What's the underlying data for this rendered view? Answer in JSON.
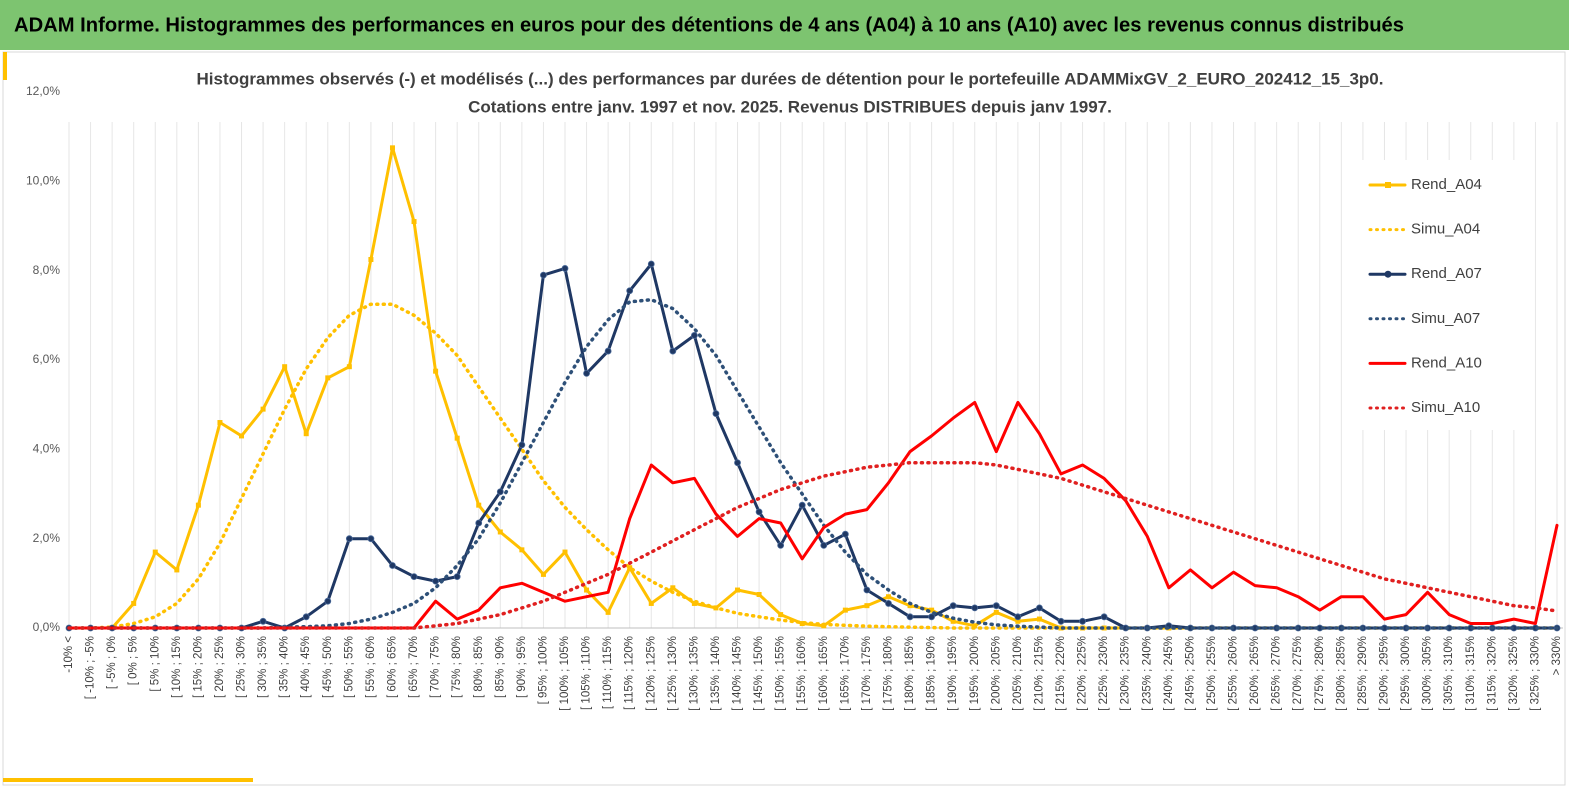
{
  "header": {
    "title": "ADAM Informe. Histogrammes des performances en euros pour des détentions de 4 ans (A04) à 10 ans (A10) avec les revenus connus distribués"
  },
  "chart_data": {
    "type": "line",
    "title": "Histogrammes observés (-) et modélisés (...) des performances par durées de détention pour le portefeuille ADAMMixGV_2_EURO_202412_15_3p0.",
    "subtitle": "Cotations entre janv. 1997 et nov. 2025. Revenus DISTRIBUES depuis janv 1997.",
    "categories": [
      "-10% <",
      "[ -10% ; -5%",
      "[ -5% ; 0%",
      "[ 0% ; 5%",
      "[ 5% ; 10%",
      "[ 10% ; 15%",
      "[ 15% ; 20%",
      "[ 20% ; 25%",
      "[ 25% ; 30%",
      "[ 30% ; 35%",
      "[ 35% ; 40%",
      "[ 40% ; 45%",
      "[ 45% ; 50%",
      "[ 50% ; 55%",
      "[ 55% ; 60%",
      "[ 60% ; 65%",
      "[ 65% ; 70%",
      "[ 70% ; 75%",
      "[ 75% ; 80%",
      "[ 80% ; 85%",
      "[ 85% ; 90%",
      "[ 90% ; 95%",
      "[ 95% ; 100%",
      "[ 100% ; 105%",
      "[ 105% ; 110%",
      "[ 110% ; 115%",
      "[ 115% ; 120%",
      "[ 120% ; 125%",
      "[ 125% ; 130%",
      "[ 130% ; 135%",
      "[ 135% ; 140%",
      "[ 140% ; 145%",
      "[ 145% ; 150%",
      "[ 150% ; 155%",
      "[ 155% ; 160%",
      "[ 160% ; 165%",
      "[ 165% ; 170%",
      "[ 170% ; 175%",
      "[ 175% ; 180%",
      "[ 180% ; 185%",
      "[ 185% ; 190%",
      "[ 190% ; 195%",
      "[ 195% ; 200%",
      "[ 200% ; 205%",
      "[ 205% ; 210%",
      "[ 210% ; 215%",
      "[ 215% ; 220%",
      "[ 220% ; 225%",
      "[ 225% ; 230%",
      "[ 230% ; 235%",
      "[ 235% ; 240%",
      "[ 240% ; 245%",
      "[ 245% ; 250%",
      "[ 250% ; 255%",
      "[ 255% ; 260%",
      "[ 260% ; 265%",
      "[ 265% ; 270%",
      "[ 270% ; 275%",
      "[ 275% ; 280%",
      "[ 280% ; 285%",
      "[ 285% ; 290%",
      "[ 290% ; 295%",
      "[ 295% ; 300%",
      "[ 300% ; 305%",
      "[ 305% ; 310%",
      "[ 310% ; 315%",
      "[ 315% ; 320%",
      "[ 320% ; 325%",
      "[ 325% ; 330%",
      "> 330%"
    ],
    "series": [
      {
        "name": "Rend_A04",
        "color": "#ffc000",
        "dashed": false,
        "marker": "square",
        "values": [
          0,
          0,
          0,
          0.55,
          1.7,
          1.3,
          2.75,
          4.6,
          4.3,
          4.9,
          5.85,
          4.35,
          5.6,
          5.85,
          8.25,
          10.75,
          9.1,
          5.75,
          4.25,
          2.75,
          2.15,
          1.75,
          1.2,
          1.7,
          0.85,
          0.35,
          1.35,
          0.55,
          0.9,
          0.55,
          0.45,
          0.85,
          0.75,
          0.3,
          0.1,
          0.05,
          0.4,
          0.5,
          0.7,
          0.5,
          0.4,
          0.15,
          0.05,
          0.35,
          0.15,
          0.2,
          0,
          0,
          0,
          0,
          0,
          0,
          0,
          0,
          0,
          0,
          0,
          0,
          0,
          0,
          0,
          0,
          0,
          0,
          0,
          0,
          0,
          0,
          0,
          0
        ]
      },
      {
        "name": "Simu_A04",
        "color": "#ffc000",
        "dashed": true,
        "marker": "none",
        "values": [
          0,
          0,
          0.02,
          0.1,
          0.25,
          0.55,
          1.1,
          1.9,
          2.9,
          3.9,
          4.9,
          5.8,
          6.5,
          7.0,
          7.25,
          7.25,
          7.0,
          6.6,
          6.1,
          5.4,
          4.7,
          4.0,
          3.3,
          2.7,
          2.2,
          1.75,
          1.35,
          1.05,
          0.8,
          0.6,
          0.45,
          0.33,
          0.25,
          0.18,
          0.12,
          0.08,
          0.06,
          0.04,
          0.03,
          0.02,
          0.01,
          0,
          0,
          0,
          0,
          0,
          0,
          0,
          0,
          0,
          0,
          0,
          0,
          0,
          0,
          0,
          0,
          0,
          0,
          0,
          0,
          0,
          0,
          0,
          0,
          0,
          0,
          0,
          0,
          0
        ]
      },
      {
        "name": "Rend_A07",
        "color": "#1f3864",
        "dashed": false,
        "marker": "circle",
        "values": [
          0,
          0,
          0,
          0,
          0,
          0,
          0,
          0,
          0,
          0.15,
          0,
          0.25,
          0.6,
          2.0,
          2.0,
          1.4,
          1.15,
          1.05,
          1.15,
          2.35,
          3.05,
          4.1,
          7.9,
          8.05,
          5.7,
          6.2,
          7.55,
          8.15,
          6.2,
          6.55,
          4.8,
          3.7,
          2.6,
          1.85,
          2.75,
          1.85,
          2.1,
          0.85,
          0.55,
          0.25,
          0.25,
          0.5,
          0.45,
          0.5,
          0.25,
          0.45,
          0.15,
          0.15,
          0.25,
          0,
          0,
          0.05,
          0,
          0,
          0,
          0,
          0,
          0,
          0,
          0,
          0,
          0,
          0,
          0,
          0,
          0,
          0,
          0,
          0,
          0
        ]
      },
      {
        "name": "Simu_A07",
        "color": "#2e5078",
        "dashed": true,
        "marker": "none",
        "values": [
          0,
          0,
          0,
          0,
          0,
          0,
          0,
          0,
          0,
          0,
          0.02,
          0.03,
          0.05,
          0.1,
          0.2,
          0.35,
          0.55,
          0.9,
          1.4,
          2.0,
          2.8,
          3.7,
          4.6,
          5.5,
          6.3,
          6.9,
          7.3,
          7.35,
          7.15,
          6.7,
          6.1,
          5.3,
          4.5,
          3.7,
          3.0,
          2.3,
          1.7,
          1.2,
          0.85,
          0.55,
          0.35,
          0.22,
          0.13,
          0.07,
          0.04,
          0.02,
          0,
          0,
          0,
          0,
          0,
          0,
          0,
          0,
          0,
          0,
          0,
          0,
          0,
          0,
          0,
          0,
          0,
          0,
          0,
          0,
          0,
          0,
          0,
          0
        ]
      },
      {
        "name": "Rend_A10",
        "color": "#ff0000",
        "dashed": false,
        "marker": "none",
        "values": [
          0,
          0,
          0,
          0,
          0,
          0,
          0,
          0,
          0,
          0,
          0,
          0,
          0,
          0,
          0,
          0,
          0,
          0.6,
          0.2,
          0.4,
          0.9,
          1.0,
          0.8,
          0.6,
          0.7,
          0.8,
          2.45,
          3.65,
          3.25,
          3.35,
          2.55,
          2.05,
          2.45,
          2.35,
          1.55,
          2.25,
          2.55,
          2.65,
          3.25,
          3.95,
          4.3,
          4.7,
          5.05,
          3.95,
          5.05,
          4.35,
          3.45,
          3.65,
          3.35,
          2.85,
          2.05,
          0.9,
          1.3,
          0.9,
          1.25,
          0.95,
          0.9,
          0.7,
          0.4,
          0.7,
          0.7,
          0.2,
          0.3,
          0.8,
          0.3,
          0.1,
          0.1,
          0.2,
          0.1,
          2.3
        ]
      },
      {
        "name": "Simu_A10",
        "color": "#e02020",
        "dashed": true,
        "marker": "none",
        "values": [
          0,
          0,
          0,
          0,
          0,
          0,
          0,
          0,
          0,
          0,
          0,
          0,
          0,
          0,
          0,
          0,
          0,
          0.05,
          0.1,
          0.2,
          0.3,
          0.45,
          0.6,
          0.8,
          1.0,
          1.2,
          1.45,
          1.7,
          1.95,
          2.2,
          2.45,
          2.7,
          2.9,
          3.1,
          3.25,
          3.4,
          3.5,
          3.6,
          3.65,
          3.7,
          3.7,
          3.7,
          3.7,
          3.65,
          3.55,
          3.45,
          3.35,
          3.2,
          3.05,
          2.9,
          2.75,
          2.6,
          2.45,
          2.3,
          2.15,
          2.0,
          1.85,
          1.7,
          1.55,
          1.4,
          1.25,
          1.1,
          1.0,
          0.9,
          0.8,
          0.7,
          0.6,
          0.5,
          0.45,
          0.38
        ]
      }
    ],
    "ylim": [
      0,
      12
    ],
    "yticks": [
      {
        "value": 0,
        "label": "0,0%"
      },
      {
        "value": 2,
        "label": "2,0%"
      },
      {
        "value": 4,
        "label": "4,0%"
      },
      {
        "value": 6,
        "label": "6,0%"
      },
      {
        "value": 8,
        "label": "8,0%"
      },
      {
        "value": 10,
        "label": "10,0%"
      },
      {
        "value": 12,
        "label": "12,0%"
      }
    ],
    "grid": true,
    "legend": "right"
  }
}
